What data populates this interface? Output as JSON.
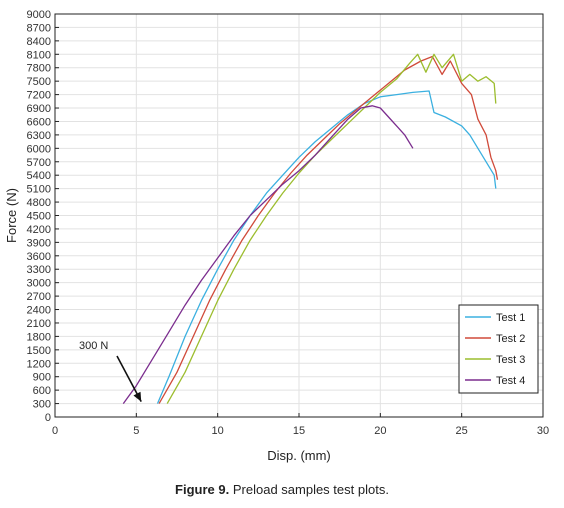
{
  "caption": {
    "figure_label": "Figure 9.",
    "text": "Preload samples test plots."
  },
  "chart_data": {
    "type": "line",
    "xlabel": "Disp. (mm)",
    "ylabel": "Force (N)",
    "xlim": [
      0,
      30
    ],
    "ylim": [
      0,
      9000
    ],
    "xticks": [
      0,
      5,
      10,
      15,
      20,
      25,
      30
    ],
    "yticks": [
      0,
      300,
      600,
      900,
      1200,
      1500,
      1800,
      2100,
      2400,
      2700,
      3000,
      3300,
      3600,
      3900,
      4200,
      4500,
      4800,
      5100,
      5400,
      5700,
      6000,
      6300,
      6600,
      6900,
      7200,
      7500,
      7800,
      8100,
      8400,
      8700,
      9000
    ],
    "grid": true,
    "legend_position": "bottom-right",
    "annotations": [
      {
        "text": "300 N",
        "arrow_to": [
          5.3,
          300
        ]
      }
    ],
    "series": [
      {
        "name": "Test 1",
        "color": "#3bb0e0",
        "points": [
          [
            6.3,
            300
          ],
          [
            7,
            900
          ],
          [
            8,
            1800
          ],
          [
            9,
            2600
          ],
          [
            10,
            3300
          ],
          [
            11,
            3950
          ],
          [
            12,
            4500
          ],
          [
            13,
            5000
          ],
          [
            14,
            5400
          ],
          [
            15,
            5800
          ],
          [
            16,
            6150
          ],
          [
            17,
            6450
          ],
          [
            18,
            6750
          ],
          [
            19,
            7000
          ],
          [
            20,
            7150
          ],
          [
            21,
            7200
          ],
          [
            22,
            7250
          ],
          [
            23,
            7280
          ],
          [
            23.3,
            6800
          ],
          [
            24,
            6700
          ],
          [
            25,
            6500
          ],
          [
            25.5,
            6300
          ],
          [
            26,
            6000
          ],
          [
            26.5,
            5700
          ],
          [
            27,
            5400
          ],
          [
            27.1,
            5100
          ]
        ]
      },
      {
        "name": "Test 2",
        "color": "#d04a3a",
        "points": [
          [
            6.4,
            300
          ],
          [
            7.5,
            1000
          ],
          [
            8.5,
            1800
          ],
          [
            9.5,
            2600
          ],
          [
            10.5,
            3300
          ],
          [
            11.5,
            3950
          ],
          [
            12.5,
            4500
          ],
          [
            13.5,
            5000
          ],
          [
            14.5,
            5450
          ],
          [
            15.5,
            5850
          ],
          [
            16.5,
            6200
          ],
          [
            17.5,
            6550
          ],
          [
            18.5,
            6850
          ],
          [
            19.5,
            7150
          ],
          [
            20.5,
            7450
          ],
          [
            21.5,
            7750
          ],
          [
            22.5,
            7950
          ],
          [
            23.2,
            8050
          ],
          [
            23.8,
            7650
          ],
          [
            24.3,
            7950
          ],
          [
            25,
            7450
          ],
          [
            25.6,
            7200
          ],
          [
            26,
            6650
          ],
          [
            26.5,
            6300
          ],
          [
            26.8,
            5800
          ],
          [
            27.1,
            5500
          ],
          [
            27.2,
            5300
          ]
        ]
      },
      {
        "name": "Test 3",
        "color": "#9cbd2e",
        "points": [
          [
            6.9,
            300
          ],
          [
            8,
            1000
          ],
          [
            9,
            1800
          ],
          [
            10,
            2600
          ],
          [
            11,
            3300
          ],
          [
            12,
            3950
          ],
          [
            13,
            4500
          ],
          [
            14,
            5000
          ],
          [
            15,
            5450
          ],
          [
            16,
            5850
          ],
          [
            17,
            6200
          ],
          [
            18,
            6550
          ],
          [
            19,
            6900
          ],
          [
            20,
            7250
          ],
          [
            21,
            7550
          ],
          [
            21.8,
            7900
          ],
          [
            22.3,
            8100
          ],
          [
            22.8,
            7700
          ],
          [
            23.3,
            8100
          ],
          [
            23.8,
            7800
          ],
          [
            24.5,
            8100
          ],
          [
            25,
            7500
          ],
          [
            25.5,
            7650
          ],
          [
            26,
            7500
          ],
          [
            26.5,
            7600
          ],
          [
            27,
            7450
          ],
          [
            27.1,
            7000
          ]
        ]
      },
      {
        "name": "Test 4",
        "color": "#7b2d8e",
        "points": [
          [
            4.2,
            300
          ],
          [
            5,
            700
          ],
          [
            6,
            1300
          ],
          [
            7,
            1900
          ],
          [
            8,
            2500
          ],
          [
            9,
            3050
          ],
          [
            10,
            3550
          ],
          [
            11,
            4050
          ],
          [
            12,
            4500
          ],
          [
            13,
            4850
          ],
          [
            14,
            5200
          ],
          [
            15,
            5500
          ],
          [
            16,
            5850
          ],
          [
            17,
            6250
          ],
          [
            18,
            6650
          ],
          [
            18.8,
            6900
          ],
          [
            19.5,
            6950
          ],
          [
            20,
            6900
          ],
          [
            20.5,
            6700
          ],
          [
            21,
            6500
          ],
          [
            21.5,
            6300
          ],
          [
            22,
            6000
          ]
        ]
      }
    ]
  }
}
